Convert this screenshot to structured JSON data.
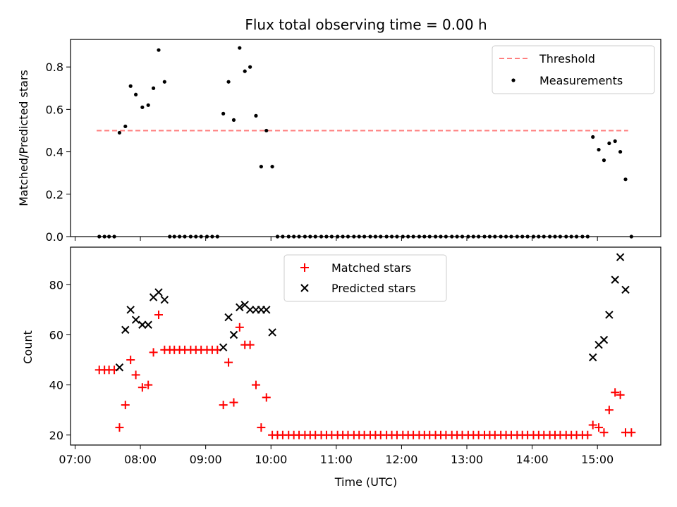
{
  "chart_data": [
    {
      "type": "scatter",
      "title": "Flux total observing time = 0.00 h",
      "ylabel": "Matched/Predicted stars",
      "xlabel": "",
      "xlim": [
        6.93,
        15.97
      ],
      "ylim": [
        0,
        0.93
      ],
      "y_ticks": [
        0.0,
        0.2,
        0.4,
        0.6,
        0.8
      ],
      "x_ticks": [
        7,
        8,
        9,
        10,
        11,
        12,
        13,
        14,
        15
      ],
      "legend_position": "top-right",
      "threshold": {
        "name": "Threshold",
        "value": 0.5,
        "x_range": [
          7.33,
          15.47
        ],
        "color": "#ff7f7f"
      },
      "series": [
        {
          "name": "Measurements",
          "color": "#000000",
          "marker": "dot",
          "x": [
            7.37,
            7.45,
            7.52,
            7.6,
            7.68,
            7.77,
            7.85,
            7.93,
            8.03,
            8.12,
            8.2,
            8.28,
            8.37,
            8.45,
            8.52,
            8.6,
            8.68,
            8.77,
            8.85,
            8.93,
            9.02,
            9.1,
            9.18,
            9.27,
            9.35,
            9.43,
            9.52,
            9.6,
            9.68,
            9.77,
            9.85,
            9.93,
            10.02,
            10.1,
            10.18,
            10.27,
            10.35,
            10.43,
            10.52,
            10.6,
            10.68,
            10.77,
            10.85,
            10.93,
            11.02,
            11.1,
            11.18,
            11.27,
            11.35,
            11.43,
            11.52,
            11.6,
            11.68,
            11.77,
            11.85,
            11.93,
            12.02,
            12.1,
            12.18,
            12.27,
            12.35,
            12.43,
            12.52,
            12.6,
            12.68,
            12.77,
            12.85,
            12.93,
            13.02,
            13.1,
            13.18,
            13.27,
            13.35,
            13.43,
            13.52,
            13.6,
            13.68,
            13.77,
            13.85,
            13.93,
            14.02,
            14.1,
            14.18,
            14.27,
            14.35,
            14.43,
            14.52,
            14.6,
            14.68,
            14.77,
            14.85,
            14.93,
            15.02,
            15.1,
            15.18,
            15.27,
            15.35,
            15.43,
            15.52
          ],
          "y": [
            0,
            0,
            0,
            0,
            0.49,
            0.52,
            0.71,
            0.67,
            0.61,
            0.62,
            0.7,
            0.88,
            0.73,
            0,
            0,
            0,
            0,
            0,
            0,
            0,
            0,
            0,
            0,
            0.58,
            0.73,
            0.55,
            0.89,
            0.78,
            0.8,
            0.57,
            0.33,
            0.5,
            0.33,
            0,
            0,
            0,
            0,
            0,
            0,
            0,
            0,
            0,
            0,
            0,
            0,
            0,
            0,
            0,
            0,
            0,
            0,
            0,
            0,
            0,
            0,
            0,
            0,
            0,
            0,
            0,
            0,
            0,
            0,
            0,
            0,
            0,
            0,
            0,
            0,
            0,
            0,
            0,
            0,
            0,
            0,
            0,
            0,
            0,
            0,
            0,
            0,
            0,
            0,
            0,
            0,
            0,
            0,
            0,
            0,
            0,
            0,
            0.47,
            0.41,
            0.36,
            0.44,
            0.45,
            0.4,
            0.27,
            0
          ]
        }
      ]
    },
    {
      "type": "scatter",
      "title": "",
      "ylabel": "Count",
      "xlabel": "Time (UTC)",
      "xlim": [
        6.93,
        15.97
      ],
      "ylim": [
        16,
        95
      ],
      "y_ticks": [
        20,
        40,
        60,
        80
      ],
      "x_ticks": [
        7,
        8,
        9,
        10,
        11,
        12,
        13,
        14,
        15
      ],
      "x_tick_labels": [
        "07:00",
        "08:00",
        "09:00",
        "10:00",
        "11:00",
        "12:00",
        "13:00",
        "14:00",
        "15:00"
      ],
      "legend_position": "top-center",
      "series": [
        {
          "name": "Matched stars",
          "color": "#ff0000",
          "marker": "plus",
          "x": [
            7.37,
            7.45,
            7.52,
            7.6,
            7.68,
            7.77,
            7.85,
            7.93,
            8.03,
            8.12,
            8.2,
            8.28,
            8.37,
            8.45,
            8.52,
            8.6,
            8.68,
            8.77,
            8.85,
            8.93,
            9.02,
            9.1,
            9.18,
            9.27,
            9.35,
            9.43,
            9.52,
            9.6,
            9.68,
            9.77,
            9.85,
            9.93,
            10.02,
            10.1,
            10.18,
            10.27,
            10.35,
            10.43,
            10.52,
            10.6,
            10.68,
            10.77,
            10.85,
            10.93,
            11.02,
            11.1,
            11.18,
            11.27,
            11.35,
            11.43,
            11.52,
            11.6,
            11.68,
            11.77,
            11.85,
            11.93,
            12.02,
            12.1,
            12.18,
            12.27,
            12.35,
            12.43,
            12.52,
            12.6,
            12.68,
            12.77,
            12.85,
            12.93,
            13.02,
            13.1,
            13.18,
            13.27,
            13.35,
            13.43,
            13.52,
            13.6,
            13.68,
            13.77,
            13.85,
            13.93,
            14.02,
            14.1,
            14.18,
            14.27,
            14.35,
            14.43,
            14.52,
            14.6,
            14.68,
            14.77,
            14.85,
            14.93,
            15.02,
            15.1,
            15.18,
            15.27,
            15.35,
            15.43,
            15.52
          ],
          "y": [
            46,
            46,
            46,
            46,
            23,
            32,
            50,
            44,
            39,
            40,
            53,
            68,
            54,
            54,
            54,
            54,
            54,
            54,
            54,
            54,
            54,
            54,
            54,
            32,
            49,
            33,
            63,
            56,
            56,
            40,
            23,
            35,
            20,
            20,
            20,
            20,
            20,
            20,
            20,
            20,
            20,
            20,
            20,
            20,
            20,
            20,
            20,
            20,
            20,
            20,
            20,
            20,
            20,
            20,
            20,
            20,
            20,
            20,
            20,
            20,
            20,
            20,
            20,
            20,
            20,
            20,
            20,
            20,
            20,
            20,
            20,
            20,
            20,
            20,
            20,
            20,
            20,
            20,
            20,
            20,
            20,
            20,
            20,
            20,
            20,
            20,
            20,
            20,
            20,
            20,
            20,
            24,
            23,
            21,
            30,
            37,
            36,
            21,
            21
          ]
        },
        {
          "name": "Predicted stars",
          "color": "#000000",
          "marker": "x",
          "x": [
            7.68,
            7.77,
            7.85,
            7.93,
            8.03,
            8.12,
            8.2,
            8.28,
            8.37,
            9.27,
            9.35,
            9.43,
            9.52,
            9.6,
            9.68,
            9.77,
            9.85,
            9.93,
            10.02,
            14.93,
            15.02,
            15.1,
            15.18,
            15.27,
            15.35,
            15.43
          ],
          "y": [
            47,
            62,
            70,
            66,
            64,
            64,
            75,
            77,
            74,
            55,
            67,
            60,
            71,
            72,
            70,
            70,
            70,
            70,
            61,
            51,
            56,
            58,
            68,
            82,
            91,
            78
          ]
        }
      ]
    }
  ]
}
